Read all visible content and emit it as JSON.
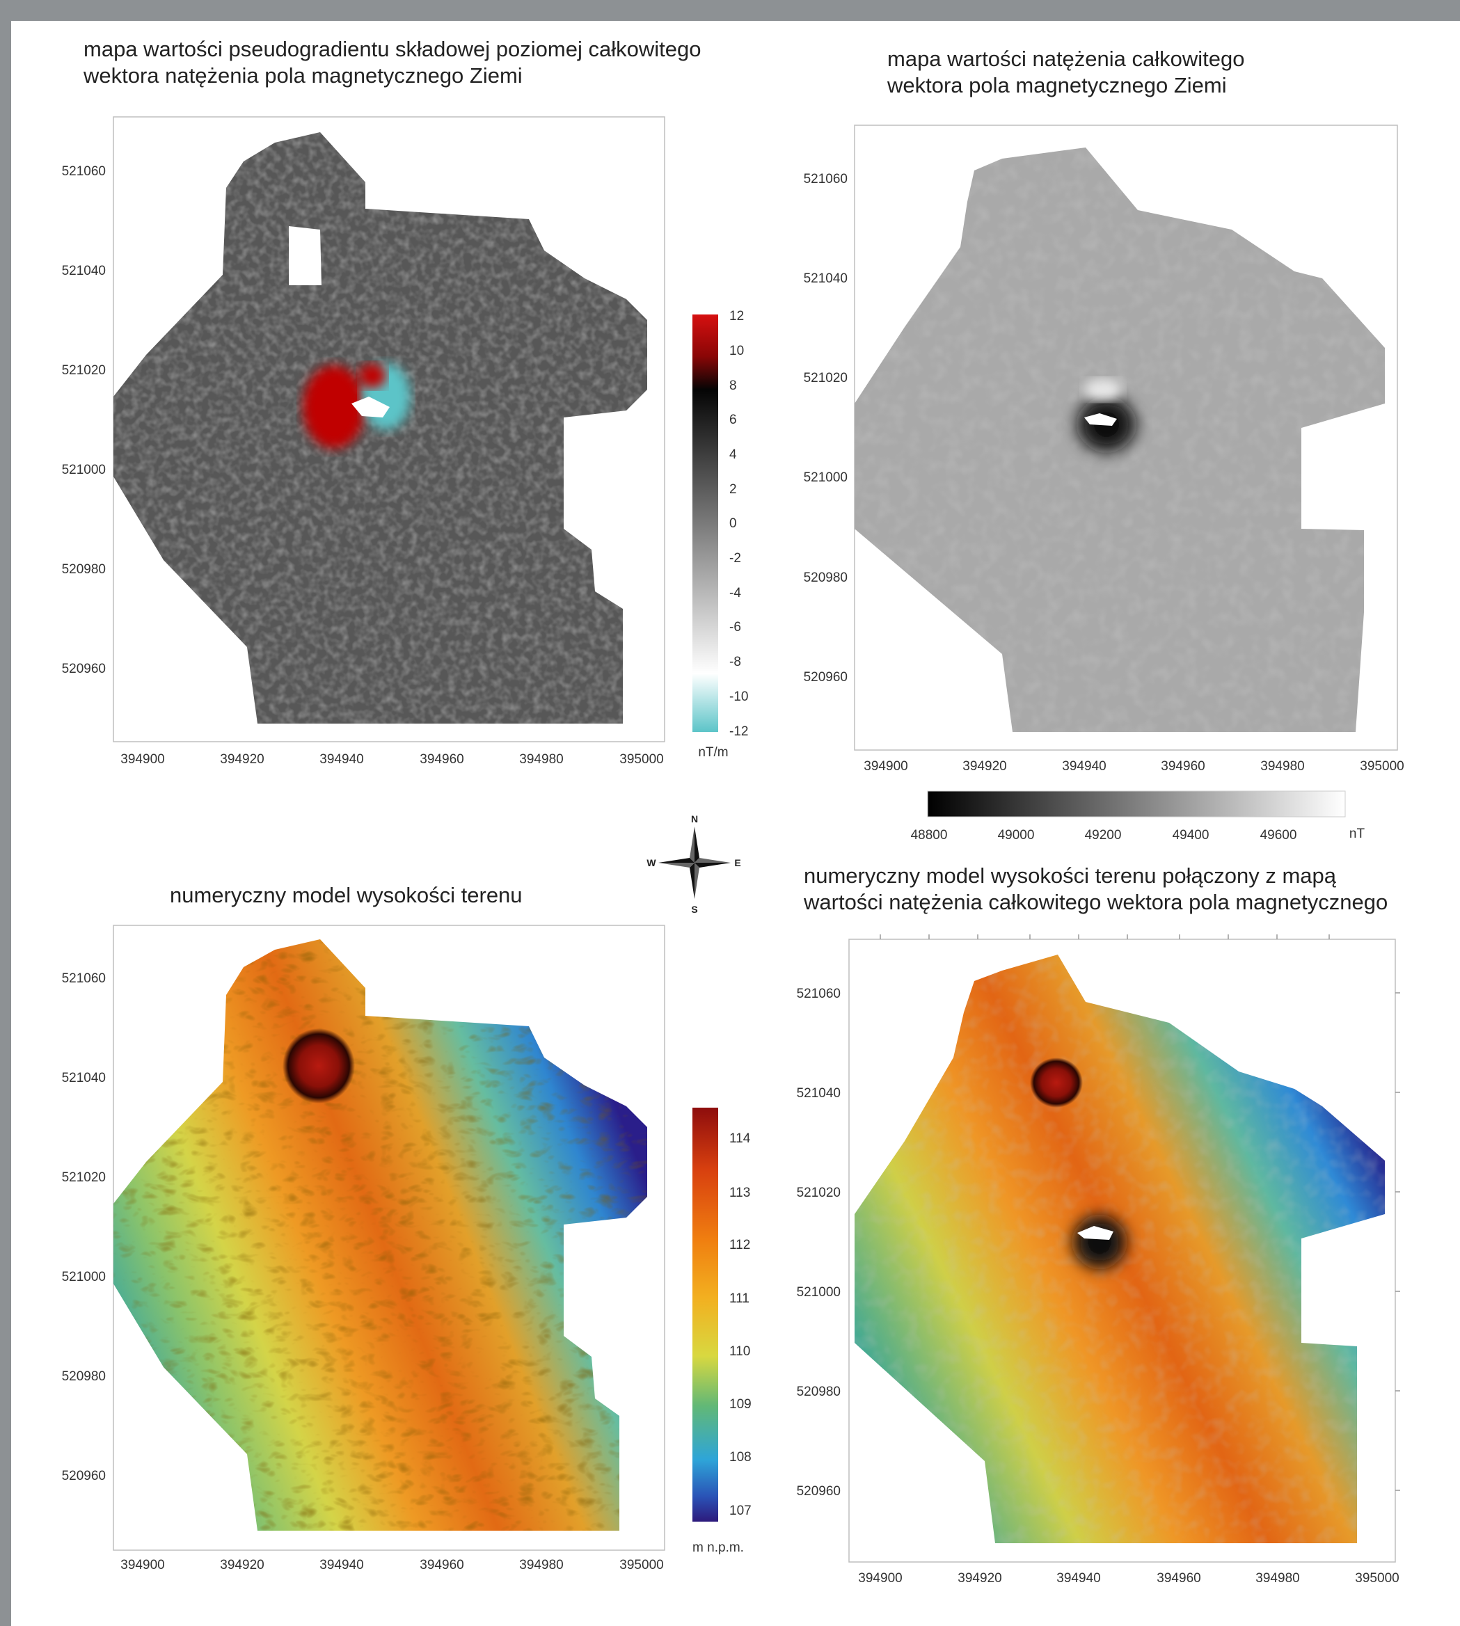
{
  "colors": {
    "frame": "#8d9194",
    "gradient_positive": "#c00000",
    "gradient_negative": "#5cc4c8",
    "dem_high": "#9b1010",
    "dem_low": "#2a1e8a"
  },
  "panels": [
    {
      "id": "tl",
      "title_lines": [
        "mapa wartości pseudogradientu składowej poziomej całkowitego",
        "wektora natężenia pola magnetycznego Ziemi"
      ]
    },
    {
      "id": "tr",
      "title_lines": [
        "mapa wartości natężenia całkowitego",
        "wektora pola magnetycznego Ziemi"
      ]
    },
    {
      "id": "bl",
      "title_lines": [
        "numeryczny model wysokości terenu"
      ]
    },
    {
      "id": "br",
      "title_lines": [
        "numeryczny model wysokości terenu połączony z mapą",
        "wartości natężenia całkowitego wektora pola magnetycznego"
      ]
    }
  ],
  "axes": {
    "x_ticks": [
      "394900",
      "394920",
      "394940",
      "394960",
      "394980",
      "395000"
    ],
    "y_ticks": [
      "521060",
      "521040",
      "521020",
      "521000",
      "520980",
      "520960"
    ]
  },
  "colorbars": {
    "gradient": {
      "ticks": [
        "12",
        "10",
        "8",
        "6",
        "4",
        "2",
        "0",
        "-2",
        "-4",
        "-6",
        "-8",
        "-10",
        "-12"
      ],
      "unit": "nT/m"
    },
    "total_field": {
      "ticks": [
        "48800",
        "49000",
        "49200",
        "49400",
        "49600"
      ],
      "unit": "nT"
    },
    "elevation": {
      "ticks": [
        "114",
        "113",
        "112",
        "111",
        "110",
        "109",
        "108",
        "107"
      ],
      "unit": "m n.p.m."
    }
  },
  "compass": {
    "n": "N",
    "s": "S",
    "e": "E",
    "w": "W"
  }
}
